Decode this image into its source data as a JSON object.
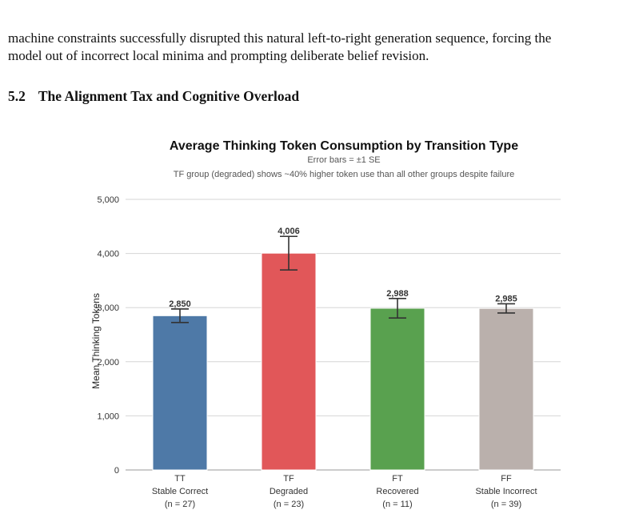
{
  "paper": {
    "top_fragment": "",
    "paragraph_line1": "machine constraints successfully disrupted this natural left-to-right generation sequence, forcing the",
    "paragraph_line2": "model out of incorrect local minima and prompting deliberate belief revision.",
    "section_number": "5.2",
    "section_title": "The Alignment Tax and Cognitive Overload"
  },
  "chart_data": {
    "type": "bar",
    "title": "Average Thinking Token Consumption by Transition Type",
    "subtitle_1": "Error bars = ±1 SE",
    "subtitle_2": "TF group (degraded) shows ~40% higher token use than all other groups despite failure",
    "ylabel": "Mean Thinking Tokens",
    "ylim": [
      0,
      5000
    ],
    "yticks": [
      0,
      1000,
      2000,
      3000,
      4000,
      5000
    ],
    "ytick_labels": [
      "0",
      "1,000",
      "2,000",
      "3,000",
      "4,000",
      "5,000"
    ],
    "grid": true,
    "categories": [
      {
        "code": "TT",
        "name": "Stable Correct",
        "n": "(n = 27)",
        "value": 2850,
        "value_label": "2,850",
        "se": 125,
        "color": "#4e79a7"
      },
      {
        "code": "TF",
        "name": "Degraded",
        "n": "(n = 23)",
        "value": 4006,
        "value_label": "4,006",
        "se": 310,
        "color": "#e15759"
      },
      {
        "code": "FT",
        "name": "Recovered",
        "n": "(n = 11)",
        "value": 2988,
        "value_label": "2,988",
        "se": 180,
        "color": "#59a14f"
      },
      {
        "code": "FF",
        "name": "Stable Incorrect",
        "n": "(n = 39)",
        "value": 2985,
        "value_label": "2,985",
        "se": 85,
        "color": "#bab0ac"
      }
    ]
  }
}
